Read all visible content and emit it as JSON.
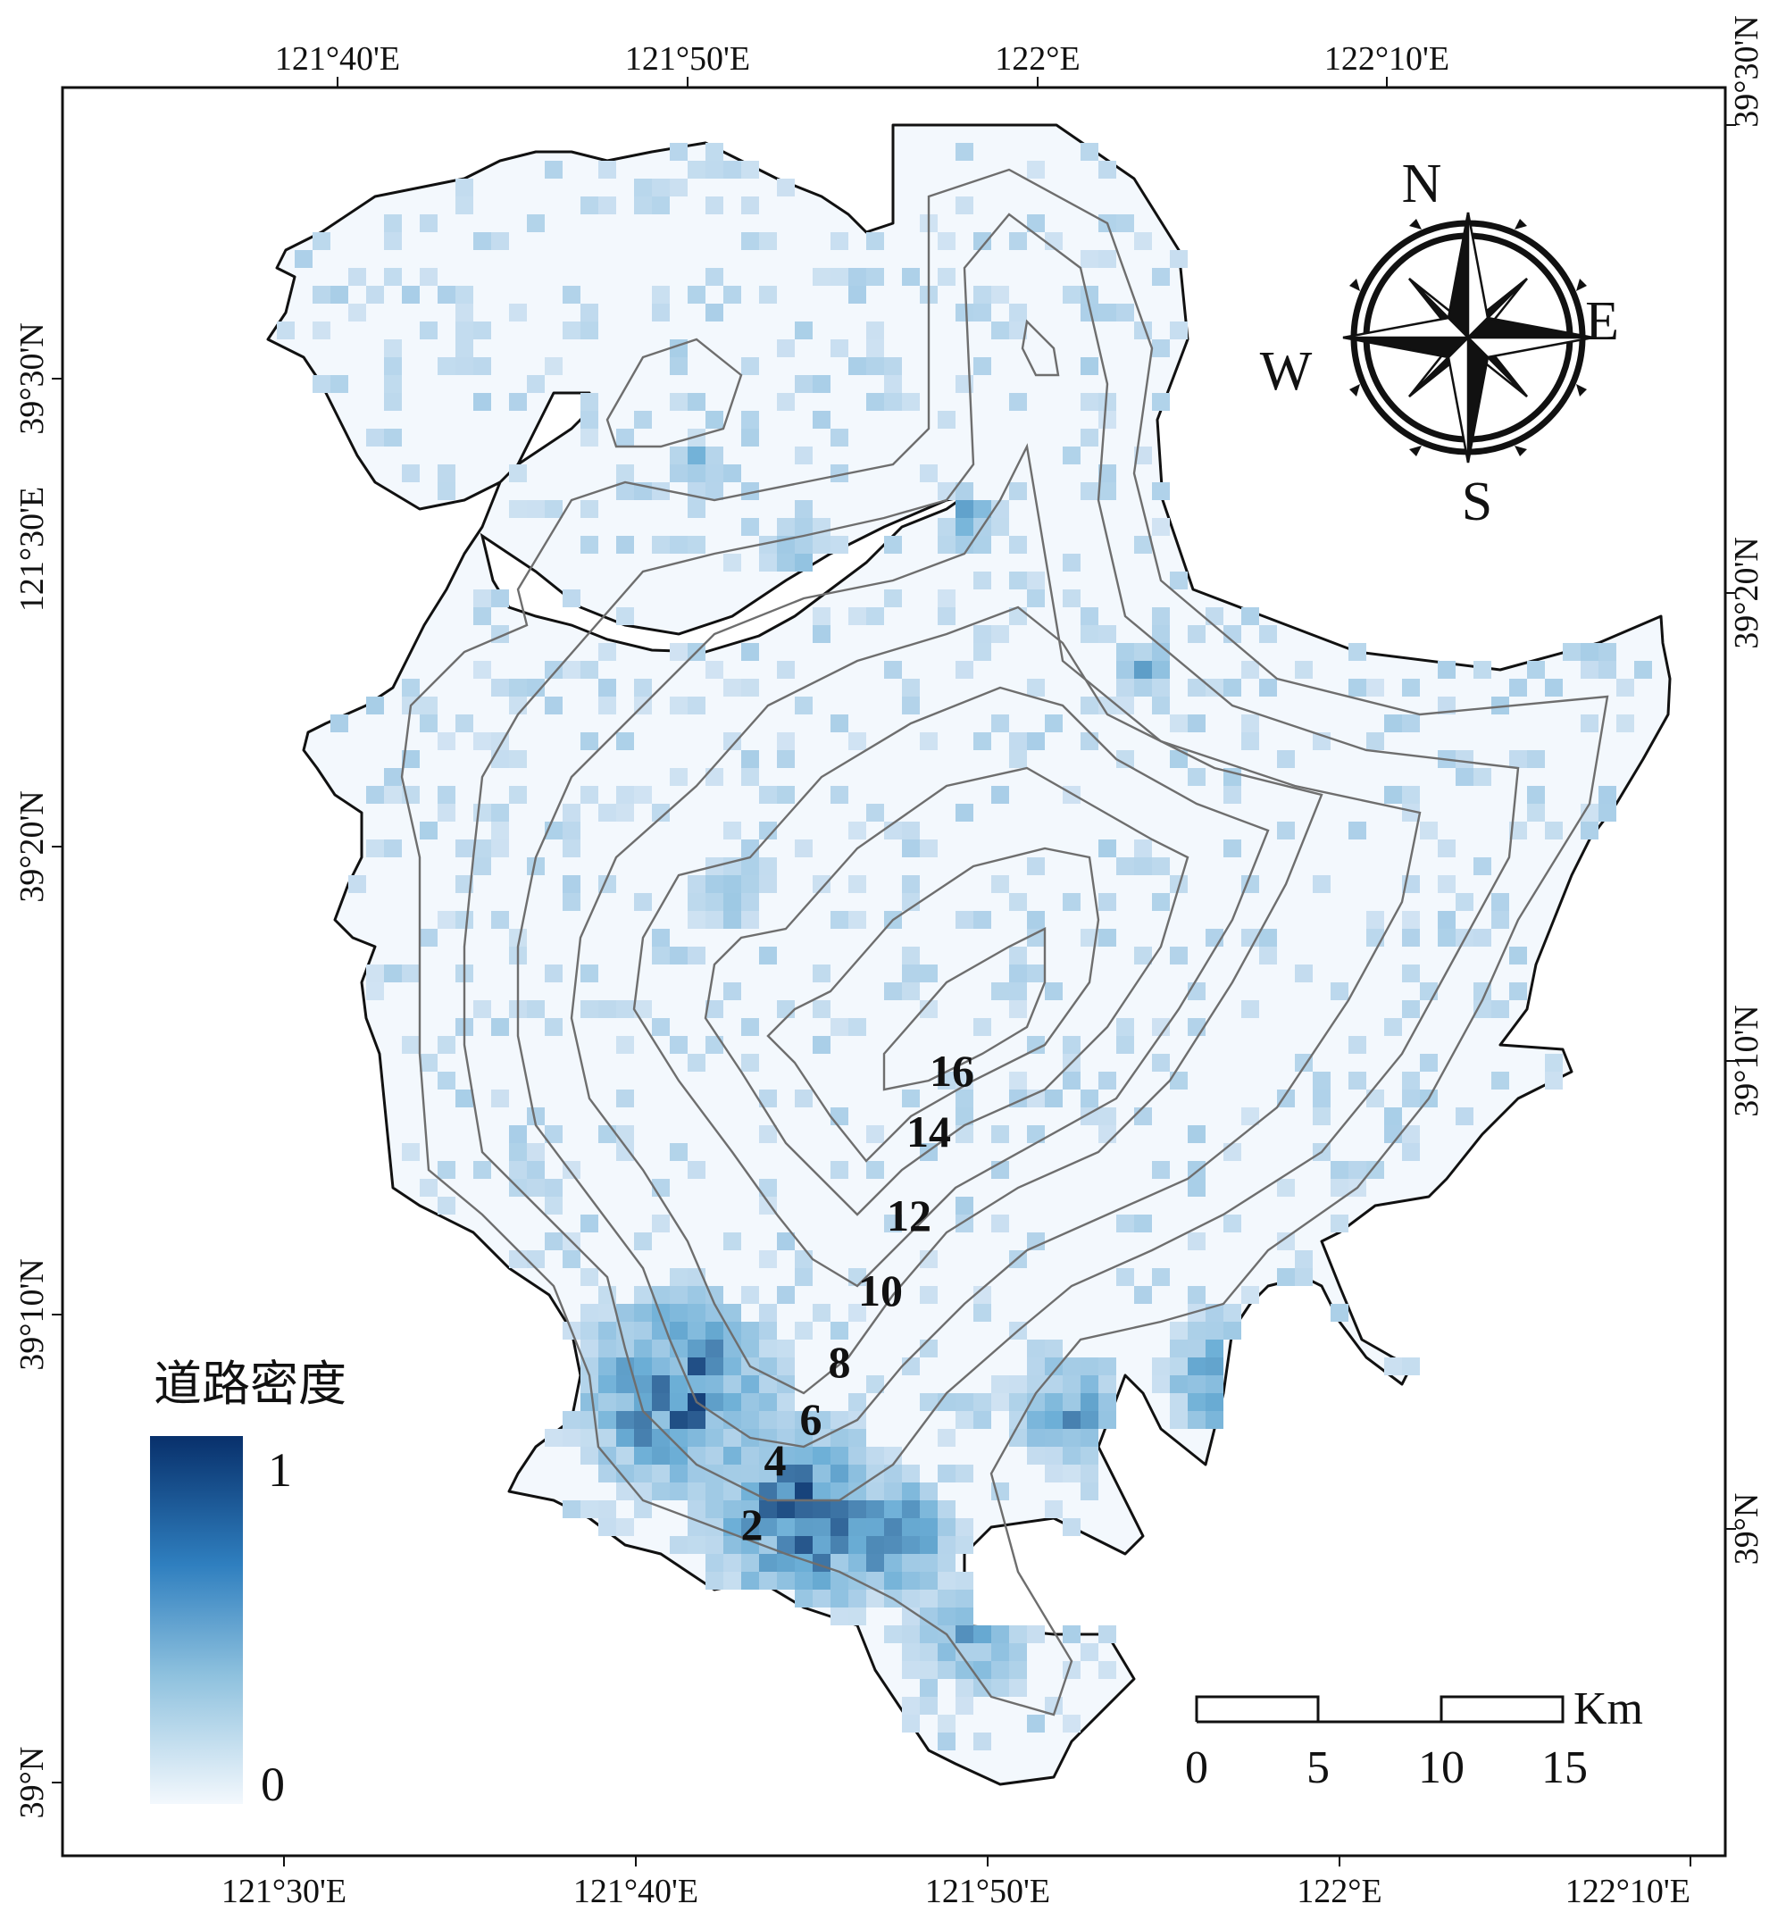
{
  "top_ticks": [
    "121°40'E",
    "121°50'E",
    "122°E",
    "122°10'E"
  ],
  "bottom_ticks": [
    "121°30'E",
    "121°40'E",
    "121°50'E",
    "122°E",
    "122°10'E"
  ],
  "left_ticks": [
    "39°30'N",
    "121°30'E",
    "39°20'N",
    "39°10'N",
    "39°N"
  ],
  "right_ticks": [
    "39°30'N",
    "39°20'N",
    "39°10'N",
    "39°N"
  ],
  "contour_labels": [
    "16",
    "14",
    "12",
    "10",
    "8",
    "6",
    "4",
    "2"
  ],
  "legend": {
    "title": "道路密度",
    "max_label": "1",
    "min_label": "0",
    "ramp_colors": [
      "#08306b",
      "#2f7fbf",
      "#8ec1de",
      "#f3f8fd"
    ]
  },
  "compass": {
    "n": "N",
    "s": "S",
    "e": "E",
    "w": "W"
  },
  "scale_bar": {
    "labels": [
      "0",
      "5",
      "10",
      "15"
    ],
    "unit": "Km"
  },
  "colors": {
    "land_fill": "#f3f8fd",
    "boundary": "#111111",
    "contour": "#6e6e6e",
    "density_low": "#dce9f6",
    "density_mid": "#6baed6",
    "density_high": "#08306b"
  }
}
